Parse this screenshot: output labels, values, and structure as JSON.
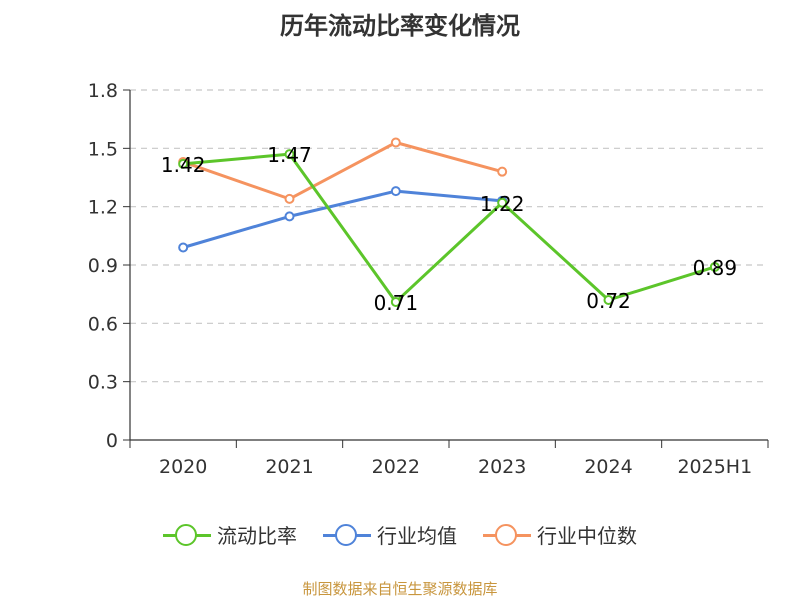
{
  "chart_data": {
    "type": "line",
    "title": "历年流动比率变化情况",
    "categories": [
      "2020",
      "2021",
      "2022",
      "2023",
      "2024",
      "2025H1"
    ],
    "ylim": [
      0,
      1.8
    ],
    "yticks": [
      "0",
      "0.3",
      "0.6",
      "0.9",
      "1.2",
      "1.5",
      "1.8"
    ],
    "grid": true,
    "legend_position": "bottom",
    "series": [
      {
        "name": "流动比率",
        "color": "#5cc52a",
        "values": [
          1.42,
          1.47,
          0.71,
          1.22,
          0.72,
          0.89
        ],
        "labels": [
          "1.42",
          "1.47",
          "0.71",
          "1.22",
          "0.72",
          "0.89"
        ]
      },
      {
        "name": "行业均值",
        "color": "#4f83d9",
        "values": [
          0.99,
          1.15,
          1.28,
          1.23,
          null,
          null
        ]
      },
      {
        "name": "行业中位数",
        "color": "#f5935f",
        "values": [
          1.43,
          1.24,
          1.53,
          1.38,
          null,
          null
        ]
      }
    ]
  },
  "source": "制图数据来自恒生聚源数据库"
}
